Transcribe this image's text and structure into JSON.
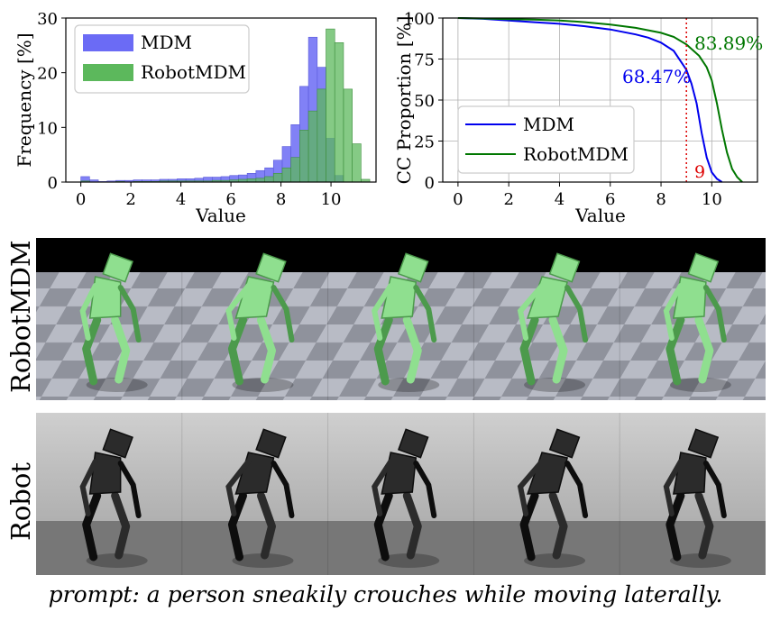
{
  "chart_data": [
    {
      "type": "bar",
      "subtype": "histogram",
      "xlabel": "Value",
      "ylabel": "Frequency [%]",
      "xlim": [
        -0.6,
        11.8
      ],
      "ylim": [
        0,
        30
      ],
      "xticks": [
        "0",
        "2",
        "4",
        "6",
        "8",
        "10"
      ],
      "yticks": [
        "0",
        "10",
        "20",
        "30"
      ],
      "legend_position": "upper-left",
      "bin_width": 0.35,
      "x": [
        -0.175,
        0.175,
        0.525,
        0.875,
        1.225,
        1.575,
        1.925,
        2.275,
        2.625,
        2.975,
        3.325,
        3.675,
        4.025,
        4.375,
        4.725,
        5.075,
        5.425,
        5.775,
        6.125,
        6.475,
        6.825,
        7.175,
        7.525,
        7.875,
        8.225,
        8.575,
        8.925,
        9.275,
        9.625,
        9.975,
        10.325,
        10.675,
        11.025,
        11.375
      ],
      "series": [
        {
          "name": "MDM",
          "color": "#6b6bf5",
          "values": [
            0,
            1.0,
            0.4,
            0.1,
            0.2,
            0.3,
            0.3,
            0.4,
            0.4,
            0.4,
            0.5,
            0.5,
            0.6,
            0.6,
            0.7,
            0.9,
            0.9,
            1.0,
            1.2,
            1.3,
            1.6,
            2.1,
            2.6,
            4.0,
            6.5,
            10.5,
            17.5,
            26.5,
            21.0,
            8.0,
            1.2,
            0,
            0,
            0
          ]
        },
        {
          "name": "RobotMDM",
          "color": "#5cb85c",
          "values": [
            0,
            0.2,
            0,
            0,
            0,
            0.1,
            0,
            0.1,
            0.1,
            0.1,
            0.2,
            0.2,
            0.2,
            0.2,
            0.2,
            0.2,
            0.3,
            0.3,
            0.4,
            0.5,
            0.6,
            0.7,
            1.0,
            1.6,
            2.6,
            4.5,
            9.5,
            13.0,
            17.0,
            28.0,
            25.5,
            17.0,
            7.0,
            0.5
          ]
        }
      ]
    },
    {
      "type": "line",
      "xlabel": "Value",
      "ylabel": "CC Proportion [%]",
      "xlim": [
        -0.6,
        11.8
      ],
      "ylim": [
        0,
        100
      ],
      "xticks": [
        "0",
        "2",
        "4",
        "6",
        "8",
        "10"
      ],
      "yticks": [
        "0",
        "25",
        "50",
        "75",
        "100"
      ],
      "grid": true,
      "legend_position": "lower-left",
      "series": [
        {
          "name": "MDM",
          "color": "#0000ee",
          "x": [
            0,
            1,
            2,
            3,
            4,
            5,
            6,
            7,
            7.5,
            8,
            8.5,
            9,
            9.2,
            9.4,
            9.6,
            9.8,
            10,
            10.2,
            10.4
          ],
          "y": [
            100,
            99.5,
            98.5,
            97.5,
            96.5,
            95,
            93,
            90,
            88,
            85,
            80,
            68.47,
            60,
            48,
            30,
            15,
            6,
            2,
            0
          ]
        },
        {
          "name": "RobotMDM",
          "color": "#007700",
          "x": [
            0,
            1,
            2,
            3,
            4,
            5,
            6,
            7,
            8,
            8.5,
            9,
            9.5,
            9.8,
            10,
            10.2,
            10.4,
            10.6,
            10.8,
            11,
            11.2
          ],
          "y": [
            100,
            99.7,
            99.3,
            99,
            98.5,
            97.5,
            96,
            94,
            91,
            88.5,
            83.89,
            77,
            70,
            62,
            48,
            32,
            18,
            8,
            3,
            0
          ]
        }
      ],
      "reference_line": {
        "x": 9,
        "color": "#dd0000",
        "label": "9"
      },
      "annotations": [
        {
          "text": "68.47%",
          "color": "#0000ee"
        },
        {
          "text": "83.89%",
          "color": "#007700"
        }
      ]
    }
  ],
  "rows": {
    "sim_label": "RobotMDM",
    "real_label": "Robot",
    "frames": 5
  },
  "caption": "prompt: a person sneakily crouches while moving laterally."
}
